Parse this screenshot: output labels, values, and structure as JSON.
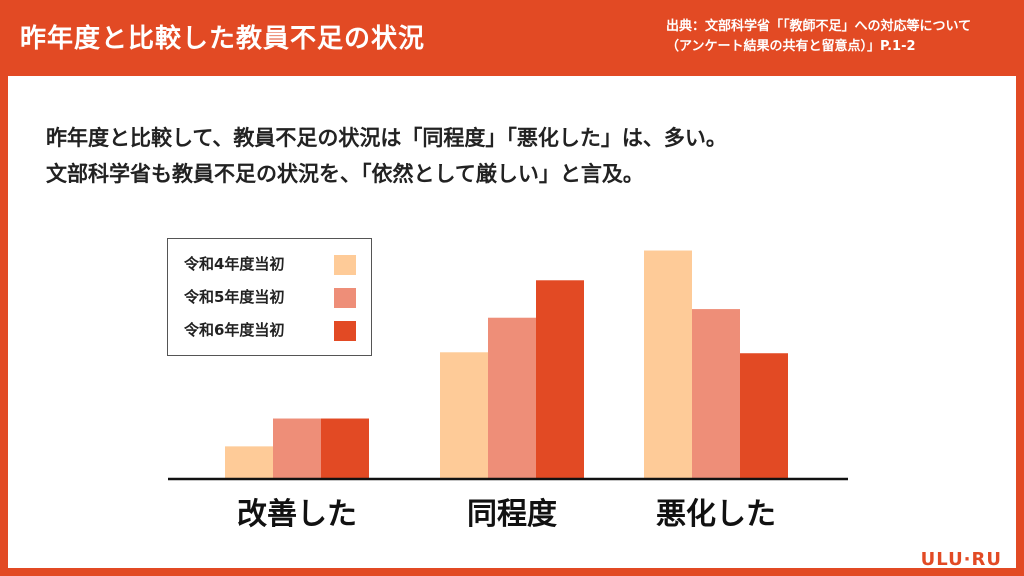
{
  "header": {
    "title": "昨年度と比較した教員不足の状況",
    "source": "出典：文部科学省「「教師不足」への対応等について（アンケート結果の共有と留意点）」P.1-2"
  },
  "summary": {
    "line1": "昨年度と比較して、教員不足の状況は「同程度」「悪化した」は、多い。",
    "line2": "文部科学省も教員不足の状況を、「依然として厳しい」と言及。"
  },
  "logo": "ULU·RU",
  "chart_data": {
    "type": "bar",
    "categories": [
      "改善した",
      "同程度",
      "悪化した"
    ],
    "series": [
      {
        "name": "令和4年度当初",
        "values": [
          34,
          132,
          238
        ],
        "color": "#fecb98"
      },
      {
        "name": "令和5年度当初",
        "values": [
          63,
          168,
          177
        ],
        "color": "#ee8e78"
      },
      {
        "name": "令和6年度当初",
        "values": [
          63,
          207,
          131
        ],
        "color": "#e24a24"
      }
    ],
    "ylim": [
      0,
      250
    ],
    "grid": false,
    "legend_position": "top-left"
  }
}
